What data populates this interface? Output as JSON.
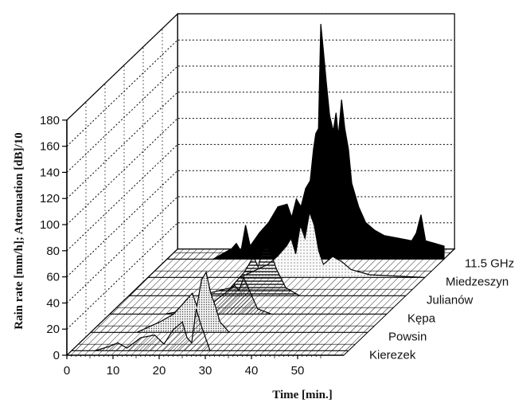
{
  "chart_data": {
    "type": "area",
    "title": "",
    "xlabel": "Time [min.]",
    "ylabel": "Rain rate [mm/h]; Attenuation [dB]/10",
    "xlim": [
      0,
      60
    ],
    "ylim": [
      0,
      180
    ],
    "x_ticks": [
      "0",
      "10",
      "20",
      "30",
      "40",
      "50"
    ],
    "y_ticks": [
      "0",
      "20",
      "40",
      "60",
      "80",
      "100",
      "120",
      "140",
      "160",
      "180"
    ],
    "grid": true,
    "legend_placement": "right-depth-labels",
    "series": [
      {
        "name": "Kierezek",
        "fill": "hatch-light",
        "points": [
          [
            0,
            0
          ],
          [
            5,
            0
          ],
          [
            8,
            3
          ],
          [
            10,
            6
          ],
          [
            12,
            2
          ],
          [
            15,
            10
          ],
          [
            18,
            12
          ],
          [
            20,
            5
          ],
          [
            22,
            16
          ],
          [
            24,
            22
          ],
          [
            25,
            10
          ],
          [
            26,
            6
          ],
          [
            27,
            32
          ],
          [
            28,
            20
          ],
          [
            30,
            0
          ],
          [
            60,
            0
          ]
        ]
      },
      {
        "name": "Powsin",
        "fill": "dots",
        "points": [
          [
            0,
            0
          ],
          [
            10,
            0
          ],
          [
            15,
            8
          ],
          [
            18,
            14
          ],
          [
            20,
            22
          ],
          [
            22,
            30
          ],
          [
            23,
            20
          ],
          [
            24,
            40
          ],
          [
            25,
            46
          ],
          [
            26,
            30
          ],
          [
            27,
            20
          ],
          [
            28,
            8
          ],
          [
            30,
            0
          ],
          [
            60,
            0
          ]
        ]
      },
      {
        "name": "Kępa",
        "fill": "hatch-dense",
        "points": [
          [
            0,
            0
          ],
          [
            12,
            0
          ],
          [
            18,
            4
          ],
          [
            22,
            8
          ],
          [
            25,
            16
          ],
          [
            27,
            22
          ],
          [
            28,
            18
          ],
          [
            29,
            28
          ],
          [
            30,
            20
          ],
          [
            32,
            4
          ],
          [
            35,
            0
          ],
          [
            60,
            0
          ]
        ]
      },
      {
        "name": "Julianów",
        "fill": "horizontal-lines",
        "points": [
          [
            0,
            0
          ],
          [
            15,
            0
          ],
          [
            22,
            6
          ],
          [
            25,
            18
          ],
          [
            27,
            30
          ],
          [
            28,
            22
          ],
          [
            29,
            35
          ],
          [
            30,
            38
          ],
          [
            31,
            30
          ],
          [
            32,
            20
          ],
          [
            34,
            6
          ],
          [
            37,
            0
          ],
          [
            60,
            0
          ]
        ]
      },
      {
        "name": "Miedzeszyn",
        "fill": "dots-light",
        "points": [
          [
            0,
            0
          ],
          [
            20,
            0
          ],
          [
            26,
            10
          ],
          [
            28,
            16
          ],
          [
            30,
            24
          ],
          [
            31,
            30
          ],
          [
            32,
            18
          ],
          [
            33,
            40
          ],
          [
            34,
            30
          ],
          [
            35,
            50
          ],
          [
            36,
            40
          ],
          [
            37,
            20
          ],
          [
            38,
            10
          ],
          [
            40,
            16
          ],
          [
            42,
            12
          ],
          [
            44,
            6
          ],
          [
            48,
            2
          ],
          [
            60,
            0
          ]
        ]
      },
      {
        "name": "11.5 GHz",
        "fill": "solid-black",
        "points": [
          [
            0,
            0
          ],
          [
            10,
            0
          ],
          [
            12,
            4
          ],
          [
            14,
            8
          ],
          [
            15,
            12
          ],
          [
            16,
            6
          ],
          [
            17,
            26
          ],
          [
            18,
            10
          ],
          [
            20,
            20
          ],
          [
            22,
            28
          ],
          [
            24,
            40
          ],
          [
            26,
            42
          ],
          [
            27,
            32
          ],
          [
            28,
            46
          ],
          [
            29,
            40
          ],
          [
            30,
            54
          ],
          [
            31,
            60
          ],
          [
            31.7,
            84
          ],
          [
            32.2,
            96
          ],
          [
            32.8,
            100
          ],
          [
            33.3,
            180
          ],
          [
            33.8,
            162
          ],
          [
            34.5,
            135
          ],
          [
            35.2,
            110
          ],
          [
            36,
            98
          ],
          [
            36.6,
            112
          ],
          [
            37.1,
            94
          ],
          [
            37.8,
            122
          ],
          [
            38.5,
            100
          ],
          [
            39.3,
            84
          ],
          [
            40,
            58
          ],
          [
            41.5,
            40
          ],
          [
            43,
            28
          ],
          [
            45,
            22
          ],
          [
            47,
            18
          ],
          [
            50,
            16
          ],
          [
            53,
            14
          ],
          [
            54,
            20
          ],
          [
            55,
            34
          ],
          [
            56,
            14
          ],
          [
            58,
            12
          ],
          [
            60,
            10
          ]
        ]
      }
    ]
  }
}
